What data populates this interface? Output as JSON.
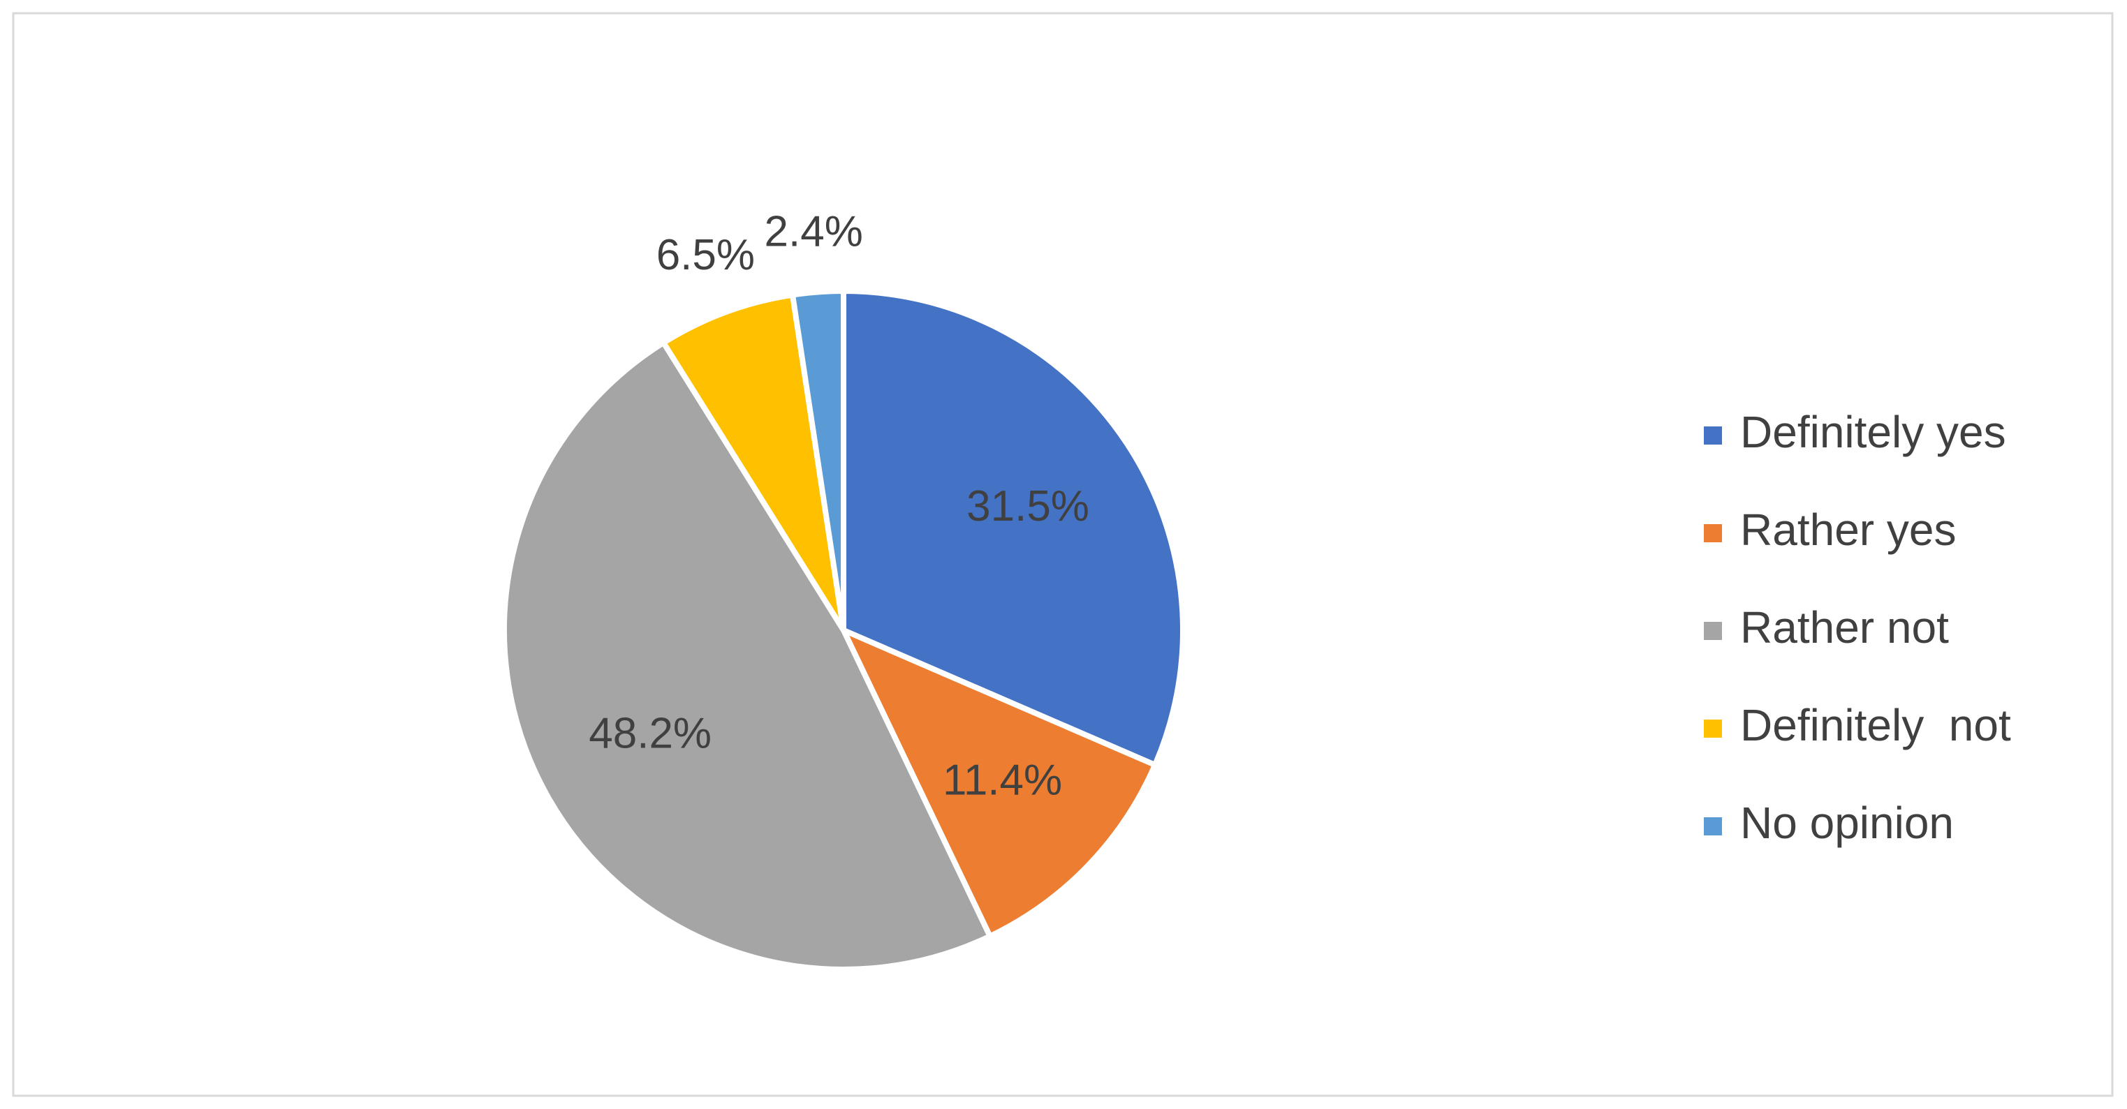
{
  "chart_data": {
    "type": "pie",
    "categories": [
      "Definitely yes",
      "Rather yes",
      "Rather not",
      "Definitely  not",
      "No opinion"
    ],
    "values": [
      31.5,
      11.4,
      48.2,
      6.5,
      2.4
    ],
    "value_labels": [
      "31.5%",
      "11.4%",
      "48.2%",
      "6.5%",
      "2.4%"
    ],
    "colors": [
      "#4472c4",
      "#ed7d31",
      "#a5a5a5",
      "#ffc000",
      "#5b9bd5"
    ],
    "legend": "right"
  }
}
